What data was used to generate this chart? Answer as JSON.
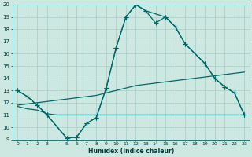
{
  "xlabel": "Humidex (Indice chaleur)",
  "bg_color": "#cce8e0",
  "grid_color": "#a8ccc8",
  "line_color": "#006868",
  "ylim": [
    9,
    20
  ],
  "xlim": [
    -0.5,
    23.5
  ],
  "yticks": [
    9,
    10,
    11,
    12,
    13,
    14,
    15,
    16,
    17,
    18,
    19,
    20
  ],
  "curve_max_x": [
    0,
    1,
    2,
    3,
    5,
    6,
    7,
    8,
    9,
    10,
    11,
    12,
    13,
    15,
    16,
    17,
    19,
    20,
    21,
    22,
    23
  ],
  "curve_max_y": [
    13.0,
    12.5,
    11.8,
    11.0,
    9.1,
    9.2,
    10.3,
    10.8,
    13.2,
    16.5,
    19.0,
    20.0,
    19.5,
    19.0,
    18.2,
    16.8,
    15.2,
    14.0,
    13.3,
    12.8,
    11.0
  ],
  "curve_mid_x": [
    0,
    1,
    2,
    3,
    5,
    6,
    7,
    8,
    9,
    10,
    11,
    12,
    13,
    14,
    15,
    16,
    17,
    19,
    20,
    21,
    22,
    23
  ],
  "curve_mid_y": [
    13.0,
    12.5,
    11.8,
    11.0,
    9.1,
    9.2,
    10.3,
    10.8,
    13.2,
    16.5,
    19.0,
    20.0,
    19.5,
    18.5,
    19.0,
    18.2,
    16.8,
    15.2,
    14.0,
    13.3,
    12.8,
    11.0
  ],
  "curve_low_x": [
    0,
    1,
    2,
    3,
    4,
    5,
    6,
    7,
    8,
    9,
    10,
    11,
    12,
    13,
    14,
    15,
    16,
    17,
    18,
    19,
    20,
    21,
    22,
    23
  ],
  "curve_low_y": [
    11.7,
    11.5,
    11.4,
    11.1,
    11.0,
    11.0,
    11.0,
    11.0,
    11.0,
    11.0,
    11.0,
    11.0,
    11.0,
    11.0,
    11.0,
    11.0,
    11.0,
    11.0,
    11.0,
    11.0,
    11.0,
    11.0,
    11.0,
    11.0
  ],
  "curve_trend_x": [
    0,
    1,
    2,
    3,
    4,
    5,
    6,
    7,
    8,
    9,
    10,
    11,
    12,
    13,
    14,
    15,
    16,
    17,
    18,
    19,
    20,
    21,
    22,
    23
  ],
  "curve_trend_y": [
    11.8,
    11.9,
    12.0,
    12.1,
    12.2,
    12.3,
    12.4,
    12.5,
    12.6,
    12.8,
    13.0,
    13.2,
    13.4,
    13.5,
    13.6,
    13.7,
    13.8,
    13.9,
    14.0,
    14.1,
    14.2,
    14.3,
    14.4,
    14.5
  ]
}
